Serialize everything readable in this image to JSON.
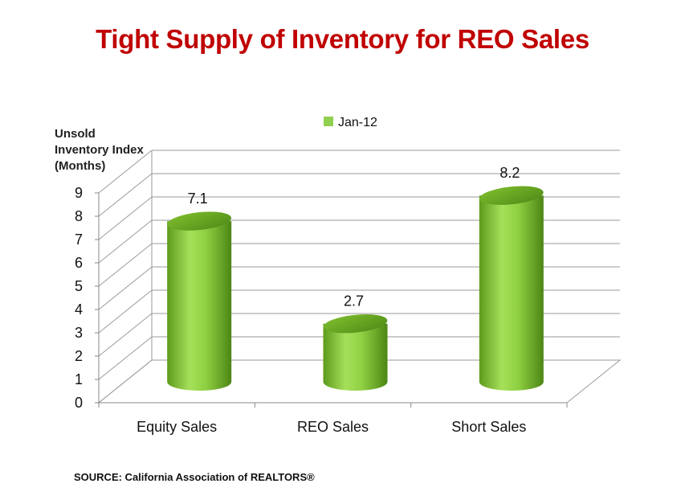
{
  "chart_data": {
    "type": "bar",
    "title": "Tight Supply of Inventory for REO Sales",
    "ylabel_lines": [
      "Unsold",
      "Inventory Index",
      "(Months)"
    ],
    "xlabel": "",
    "categories": [
      "Equity Sales",
      "REO Sales",
      "Short Sales"
    ],
    "series": [
      {
        "name": "Jan-12",
        "values": [
          7.1,
          2.7,
          8.2
        ],
        "color": "#92d050"
      }
    ],
    "value_labels": [
      "7.1",
      "2.7",
      "8.2"
    ],
    "ylim": [
      0,
      9
    ],
    "yticks": [
      0,
      1,
      2,
      3,
      4,
      5,
      6,
      7,
      8,
      9
    ],
    "grid": true,
    "legend_position": "top",
    "three_d": true
  },
  "source": "SOURCE: California Association of REALTORS®"
}
